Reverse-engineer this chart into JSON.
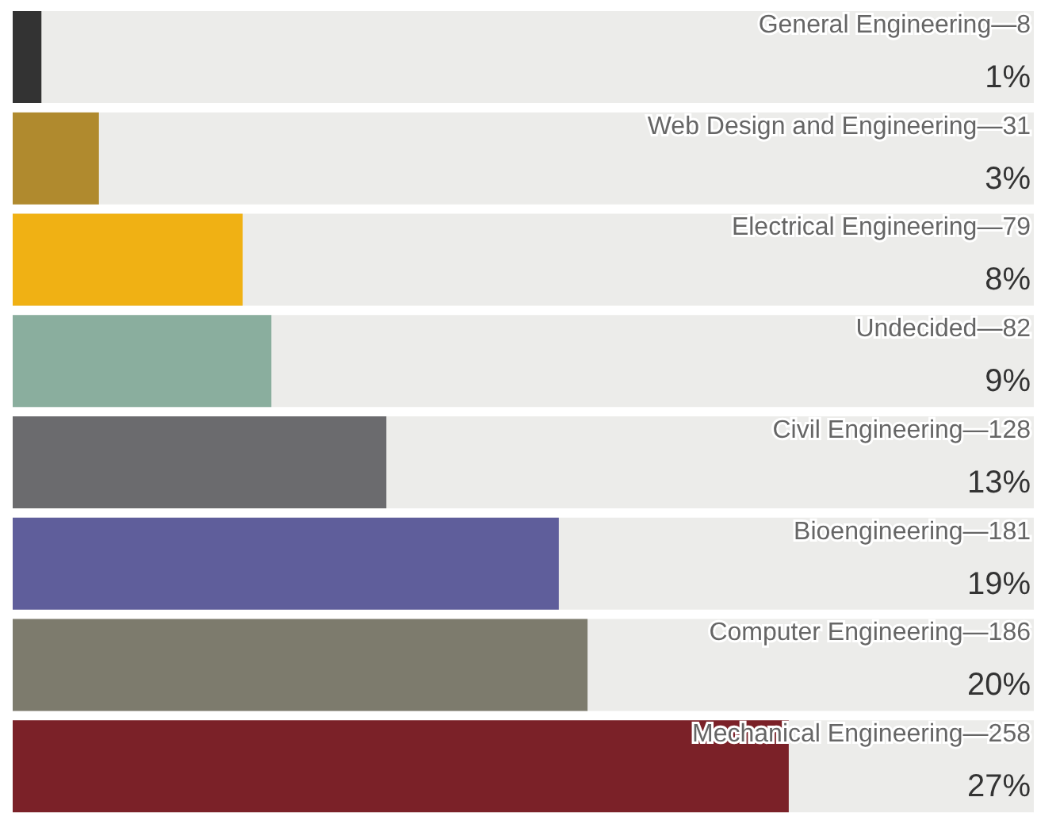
{
  "chart_data": {
    "type": "bar",
    "orientation": "horizontal",
    "categories": [
      "General Engineering—8",
      "Web Design and Engineering—31",
      "Electrical Engineering—79",
      "Undecided—82",
      "Civil Engineering—128",
      "Bioengineering—181",
      "Computer Engineering—186",
      "Mechanical Engineering—258"
    ],
    "values": [
      1,
      3,
      8,
      9,
      13,
      19,
      20,
      27
    ],
    "colors": [
      "#333333",
      "#b08a2e",
      "#f0b114",
      "#8aae9e",
      "#6b6b6e",
      "#5f5e9b",
      "#7d7b6d",
      "#7b2128"
    ],
    "value_labels": [
      "1%",
      "3%",
      "8%",
      "9%",
      "13%",
      "19%",
      "20%",
      "27%"
    ]
  }
}
